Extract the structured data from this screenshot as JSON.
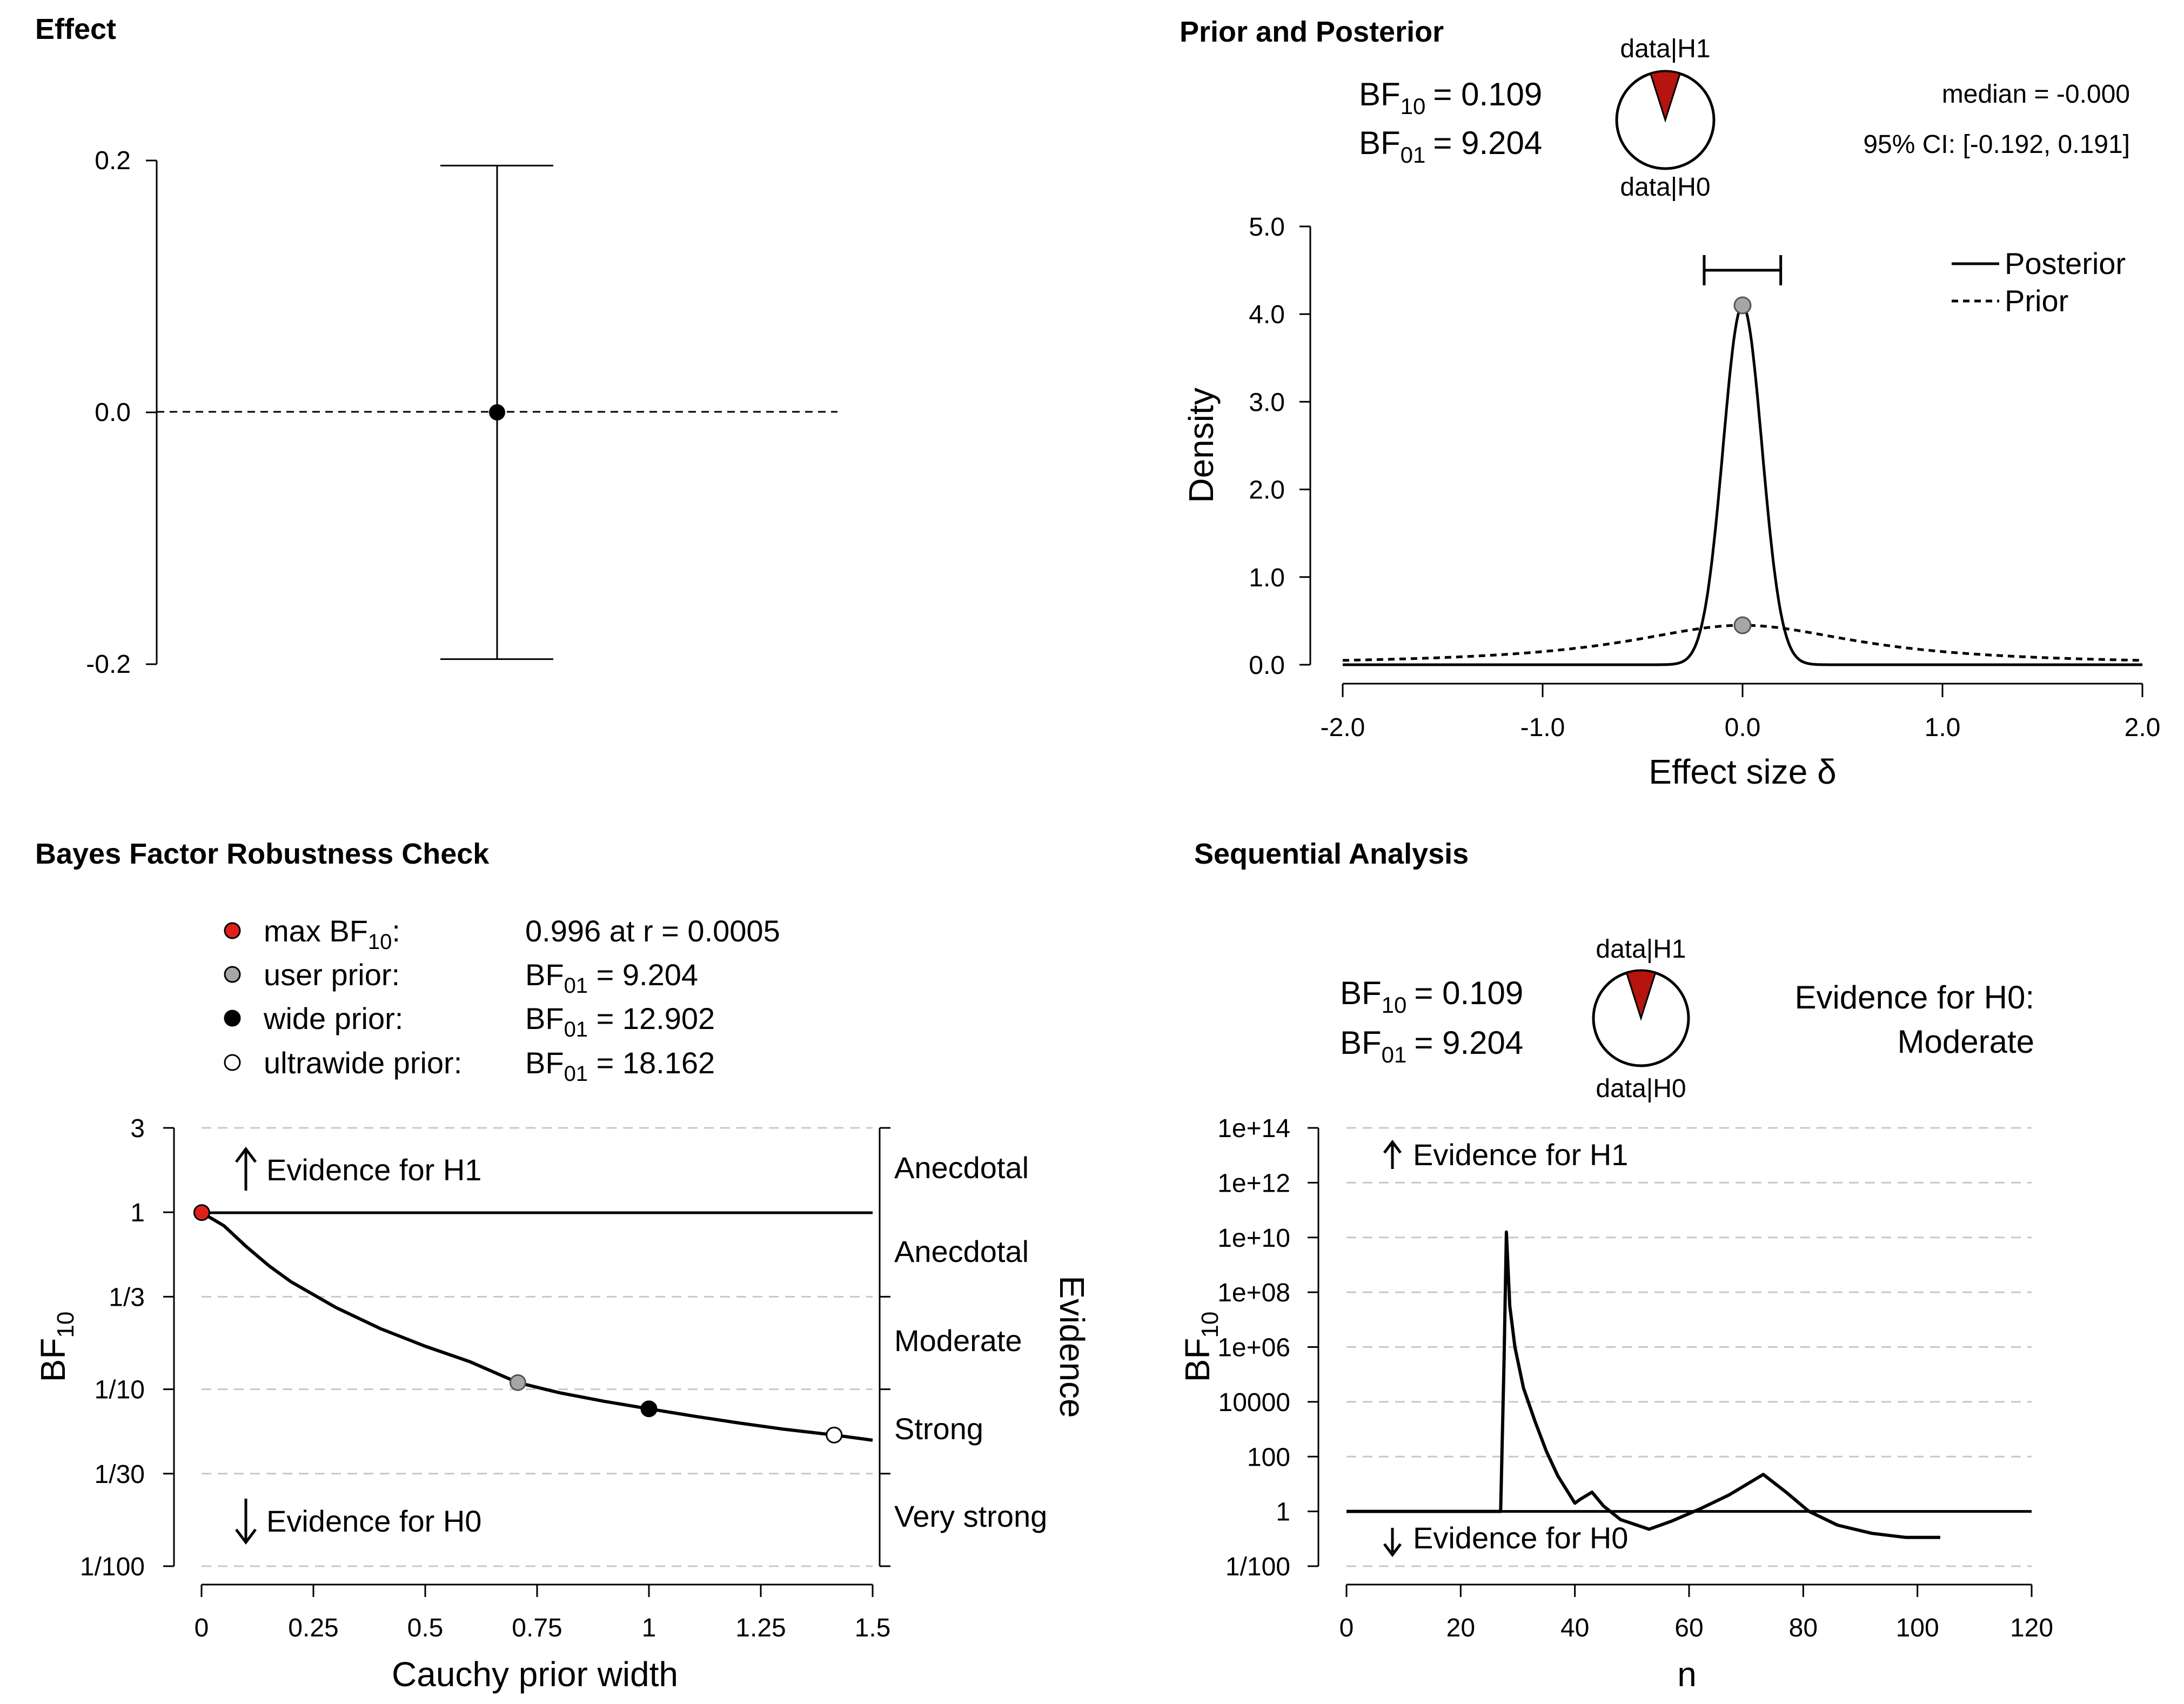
{
  "chart_data": [
    {
      "id": "effect",
      "type": "errorbar",
      "title": "Effect",
      "yticks": [
        "0.2",
        "0.0",
        "-0.2"
      ],
      "ylim": [
        -0.2,
        0.2
      ],
      "estimate": 0.0,
      "ci": [
        -0.196,
        0.196
      ],
      "reference_line": 0.0
    },
    {
      "id": "prior-posterior",
      "type": "line",
      "title": "Prior and Posterior",
      "bf10_label": "BF",
      "bf10_sub": "10",
      "bf10_value": "= 0.109",
      "bf01_label": "BF",
      "bf01_sub": "01",
      "bf01_value": "= 9.204",
      "pie_top": "data|H1",
      "pie_bottom": "data|H0",
      "pie_h1_fraction": 0.098,
      "median_text": "median = -0.000",
      "ci_text": "95% CI: [-0.192, 0.191]",
      "ci": [
        -0.192,
        0.191
      ],
      "xlabel": "Effect size δ",
      "ylabel": "Density",
      "xticks": [
        "-2.0",
        "-1.0",
        "0.0",
        "1.0",
        "2.0"
      ],
      "yticks": [
        "0.0",
        "1.0",
        "2.0",
        "3.0",
        "4.0",
        "5.0"
      ],
      "xlim": [
        -2,
        2
      ],
      "ylim": [
        0,
        5
      ],
      "posterior_sd": 0.0973,
      "prior_scale": 0.707,
      "posterior_at_zero": 4.1,
      "prior_at_zero": 0.45,
      "legend": [
        "Posterior",
        "Prior"
      ],
      "legend_position": "top-right"
    },
    {
      "id": "robustness",
      "type": "line",
      "title": "Bayes Factor Robustness Check",
      "legend": [
        {
          "marker": "red",
          "label": "max BF",
          "label_sub": "10",
          "label_tail": ":",
          "value_prefix": "0.996 at r = 0.0005",
          "value_sub": "",
          "value_tail": ""
        },
        {
          "marker": "grey",
          "label": "user prior:",
          "label_sub": "",
          "label_tail": "",
          "value_prefix": "BF",
          "value_sub": "01",
          "value_tail": " = 9.204"
        },
        {
          "marker": "black",
          "label": "wide prior:",
          "label_sub": "",
          "label_tail": "",
          "value_prefix": "BF",
          "value_sub": "01",
          "value_tail": " = 12.902"
        },
        {
          "marker": "white",
          "label": "ultrawide prior:",
          "label_sub": "",
          "label_tail": "",
          "value_prefix": "BF",
          "value_sub": "01",
          "value_tail": " = 18.162"
        }
      ],
      "xlabel": "Cauchy prior width",
      "ylabel": "BF",
      "ylabel_sub": "10",
      "xticks": [
        "0",
        "0.25",
        "0.5",
        "0.75",
        "1",
        "1.25",
        "1.5"
      ],
      "yticks": [
        "3",
        "1",
        "1/3",
        "1/10",
        "1/30",
        "1/100"
      ],
      "xlim": [
        0,
        1.5
      ],
      "ylim_log10": [
        -2,
        0.477
      ],
      "evidence_h1": "Evidence for H1",
      "evidence_h0": "Evidence for H0",
      "right_labels": [
        "Anecdotal",
        "Anecdotal",
        "Moderate",
        "Strong",
        "Very strong"
      ],
      "right_axis_title": "Evidence",
      "curve": {
        "x": [
          0.0005,
          0.05,
          0.1,
          0.15,
          0.2,
          0.3,
          0.4,
          0.5,
          0.6,
          0.707,
          0.8,
          0.9,
          1.0,
          1.1,
          1.2,
          1.3,
          1.414,
          1.5
        ],
        "bf10": [
          0.996,
          0.84,
          0.64,
          0.5,
          0.405,
          0.29,
          0.22,
          0.175,
          0.143,
          0.109,
          0.0955,
          0.0855,
          0.0775,
          0.0705,
          0.0645,
          0.0595,
          0.0551,
          0.0515
        ]
      },
      "points": [
        {
          "x": 0.0005,
          "bf10": 0.996,
          "kind": "red"
        },
        {
          "x": 0.707,
          "bf10": 0.109,
          "kind": "grey"
        },
        {
          "x": 1.0,
          "bf10": 0.0775,
          "kind": "black"
        },
        {
          "x": 1.414,
          "bf10": 0.0551,
          "kind": "white"
        }
      ]
    },
    {
      "id": "sequential",
      "type": "line",
      "title": "Sequential Analysis",
      "bf10_label": "BF",
      "bf10_sub": "10",
      "bf10_value": "= 0.109",
      "bf01_label": "BF",
      "bf01_sub": "01",
      "bf01_value": "= 9.204",
      "pie_top": "data|H1",
      "pie_bottom": "data|H0",
      "pie_h1_fraction": 0.098,
      "evidence_title": "Evidence for H0:",
      "evidence_level": "Moderate",
      "xlabel": "n",
      "ylabel": "BF",
      "ylabel_sub": "10",
      "xticks": [
        "0",
        "20",
        "40",
        "60",
        "80",
        "100",
        "120"
      ],
      "yticks": [
        "1e+14",
        "1e+12",
        "1e+10",
        "1e+08",
        "1e+06",
        "10000",
        "100",
        "1",
        "1/100"
      ],
      "xlim": [
        0,
        120
      ],
      "ylim_log10": [
        -2,
        14
      ],
      "evidence_h1": "Evidence for H1",
      "evidence_h0": "Evidence for H0",
      "curve": {
        "n": [
          0,
          27,
          27.6,
          28,
          28.6,
          29.5,
          31,
          33,
          35,
          37,
          40,
          41,
          43,
          45,
          48,
          53,
          57,
          62,
          67,
          73,
          77,
          81,
          86,
          92,
          98,
          104
        ],
        "log10_bf": [
          0,
          0,
          5.5,
          10.2,
          7.5,
          6.0,
          4.5,
          3.3,
          2.2,
          1.3,
          0.3,
          0.45,
          0.7,
          0.2,
          -0.3,
          -0.65,
          -0.35,
          0.1,
          0.6,
          1.35,
          0.7,
          0.0,
          -0.5,
          -0.8,
          -0.95,
          -0.95
        ]
      },
      "reference_line": 1
    }
  ]
}
